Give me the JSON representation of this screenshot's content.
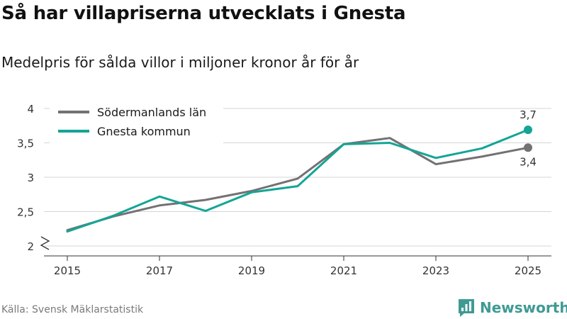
{
  "header": {
    "title": "Så har villapriserna utvecklats i Gnesta",
    "subtitle": "Medelpris för sålda villor i miljoner kronor år för år"
  },
  "footer": {
    "source": "Källa: Svensk Mäklarstatistik",
    "brand": "Newsworthy"
  },
  "colors": {
    "sodermanland": "#747174",
    "gnesta": "#14a596",
    "grid": "#d4d4d4",
    "axis_text": "#333333",
    "brand": "#3f9a94"
  },
  "chart_data": {
    "type": "line",
    "title": "Så har villapriserna utvecklats i Gnesta",
    "subtitle": "Medelpris för sålda villor i miljoner kronor år för år",
    "xlabel": "",
    "ylabel": "",
    "x": [
      2015,
      2016,
      2017,
      2018,
      2019,
      2020,
      2021,
      2022,
      2023,
      2024,
      2025
    ],
    "xticks": [
      2015,
      2017,
      2019,
      2021,
      2023,
      2025
    ],
    "xtick_labels": [
      "2015",
      "2017",
      "2019",
      "2021",
      "2023",
      "2025"
    ],
    "ylim": [
      2,
      4
    ],
    "yticks": [
      2,
      2.5,
      3,
      3.5,
      4
    ],
    "ytick_labels": [
      "2",
      "2,5",
      "3",
      "3,5",
      "4"
    ],
    "grid": true,
    "y_axis_break": true,
    "legend_position": "top-left",
    "series": [
      {
        "name": "Södermanlands län",
        "color": "#747174",
        "values": [
          2.23,
          2.43,
          2.59,
          2.67,
          2.8,
          2.98,
          3.48,
          3.57,
          3.19,
          3.3,
          3.43
        ],
        "end_label": "3,4"
      },
      {
        "name": "Gnesta kommun",
        "color": "#14a596",
        "values": [
          2.21,
          2.44,
          2.72,
          2.51,
          2.78,
          2.87,
          3.48,
          3.5,
          3.28,
          3.42,
          3.69
        ],
        "end_label": "3,7"
      }
    ]
  }
}
